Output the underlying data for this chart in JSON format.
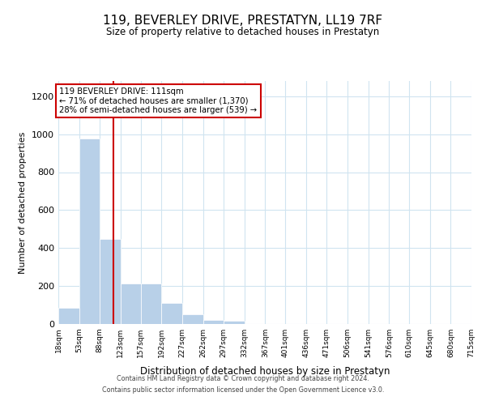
{
  "title": "119, BEVERLEY DRIVE, PRESTATYN, LL19 7RF",
  "subtitle": "Size of property relative to detached houses in Prestatyn",
  "xlabel": "Distribution of detached houses by size in Prestatyn",
  "ylabel": "Number of detached properties",
  "bin_labels": [
    "18sqm",
    "53sqm",
    "88sqm",
    "123sqm",
    "157sqm",
    "192sqm",
    "227sqm",
    "262sqm",
    "297sqm",
    "332sqm",
    "367sqm",
    "401sqm",
    "436sqm",
    "471sqm",
    "506sqm",
    "541sqm",
    "576sqm",
    "610sqm",
    "645sqm",
    "680sqm",
    "715sqm"
  ],
  "bar_heights": [
    85,
    975,
    450,
    215,
    215,
    110,
    50,
    20,
    18,
    0,
    0,
    0,
    0,
    0,
    0,
    0,
    0,
    0,
    0,
    0,
    0
  ],
  "bar_color": "#b8d0e8",
  "property_line_x": 111,
  "annotation_line1": "119 BEVERLEY DRIVE: 111sqm",
  "annotation_line2": "← 71% of detached houses are smaller (1,370)",
  "annotation_line3": "28% of semi-detached houses are larger (539) →",
  "annotation_box_color": "#ffffff",
  "annotation_box_edge": "#cc0000",
  "vline_color": "#cc0000",
  "footer_line1": "Contains HM Land Registry data © Crown copyright and database right 2024.",
  "footer_line2": "Contains public sector information licensed under the Open Government Licence v3.0.",
  "bin_edges": [
    18,
    53,
    88,
    123,
    157,
    192,
    227,
    262,
    297,
    332,
    367,
    401,
    436,
    471,
    506,
    541,
    576,
    610,
    645,
    680,
    715
  ],
  "xlim_min": 18,
  "xlim_max": 715,
  "ylim_min": 0,
  "ylim_max": 1280,
  "yticks": [
    0,
    200,
    400,
    600,
    800,
    1000,
    1200
  ],
  "grid_color": "#d0e4f0"
}
